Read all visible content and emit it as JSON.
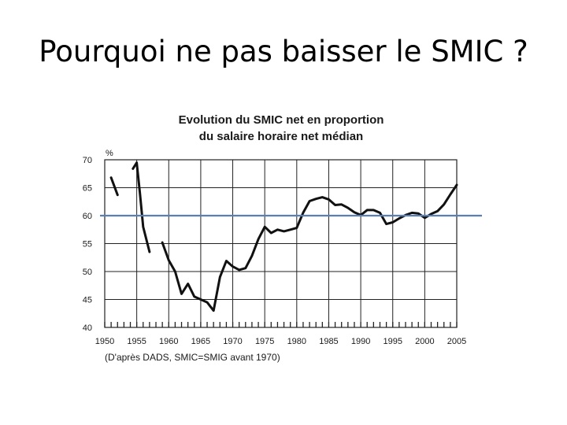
{
  "slide": {
    "title": "Pourquoi ne pas baisser le SMIC ?"
  },
  "chart_data": {
    "type": "line",
    "title_line1": "Evolution du SMIC net en proportion",
    "title_line2": "du salaire horaire net médian",
    "ylabel": "%",
    "source_note": "(D'après DADS, SMIC=SMIG avant 1970)",
    "xlim": [
      1950,
      2005
    ],
    "ylim": [
      40,
      70
    ],
    "x_ticks": [
      1950,
      1955,
      1960,
      1965,
      1970,
      1975,
      1980,
      1985,
      1990,
      1995,
      2000,
      2005
    ],
    "y_ticks": [
      40,
      45,
      50,
      55,
      60,
      65,
      70
    ],
    "grid": true,
    "reference_line": {
      "y": 60,
      "color": "#5b7fb0"
    },
    "line_color": "#111111",
    "series": [
      {
        "segments": [
          [
            [
              1951.0,
              66.8
            ],
            [
              1952.0,
              63.7
            ]
          ],
          [
            [
              1954.4,
              68.4
            ],
            [
              1955.0,
              69.5
            ],
            [
              1955.5,
              64.0
            ],
            [
              1956.0,
              58.0
            ],
            [
              1957.0,
              53.5
            ]
          ],
          [
            [
              1959.0,
              55.2
            ],
            [
              1960.0,
              52.0
            ],
            [
              1961.0,
              50.0
            ],
            [
              1962.0,
              46.0
            ],
            [
              1963.0,
              47.8
            ],
            [
              1964.0,
              45.5
            ],
            [
              1965.0,
              45.0
            ],
            [
              1966.0,
              44.5
            ],
            [
              1967.0,
              43.0
            ],
            [
              1968.0,
              49.0
            ],
            [
              1969.0,
              51.9
            ],
            [
              1970.0,
              50.9
            ],
            [
              1971.0,
              50.3
            ],
            [
              1972.0,
              50.6
            ],
            [
              1973.0,
              52.8
            ],
            [
              1974.0,
              55.8
            ],
            [
              1975.0,
              58.0
            ],
            [
              1976.0,
              56.9
            ],
            [
              1977.0,
              57.5
            ],
            [
              1978.0,
              57.2
            ],
            [
              1979.0,
              57.5
            ],
            [
              1980.0,
              57.8
            ],
            [
              1981.0,
              60.5
            ],
            [
              1982.0,
              62.6
            ],
            [
              1983.0,
              63.0
            ],
            [
              1984.0,
              63.3
            ],
            [
              1985.0,
              62.9
            ],
            [
              1986.0,
              61.9
            ],
            [
              1987.0,
              62.0
            ],
            [
              1988.0,
              61.4
            ],
            [
              1989.0,
              60.6
            ],
            [
              1990.0,
              60.1
            ],
            [
              1991.0,
              61.0
            ],
            [
              1992.0,
              61.0
            ],
            [
              1993.0,
              60.5
            ],
            [
              1994.0,
              58.5
            ],
            [
              1995.0,
              58.8
            ],
            [
              1996.0,
              59.5
            ],
            [
              1997.0,
              60.1
            ],
            [
              1998.0,
              60.5
            ],
            [
              1999.0,
              60.4
            ],
            [
              2000.0,
              59.6
            ],
            [
              2001.0,
              60.3
            ],
            [
              2002.0,
              60.8
            ],
            [
              2003.0,
              62.0
            ],
            [
              2004.0,
              63.8
            ],
            [
              2005.0,
              65.5
            ]
          ]
        ]
      }
    ]
  }
}
